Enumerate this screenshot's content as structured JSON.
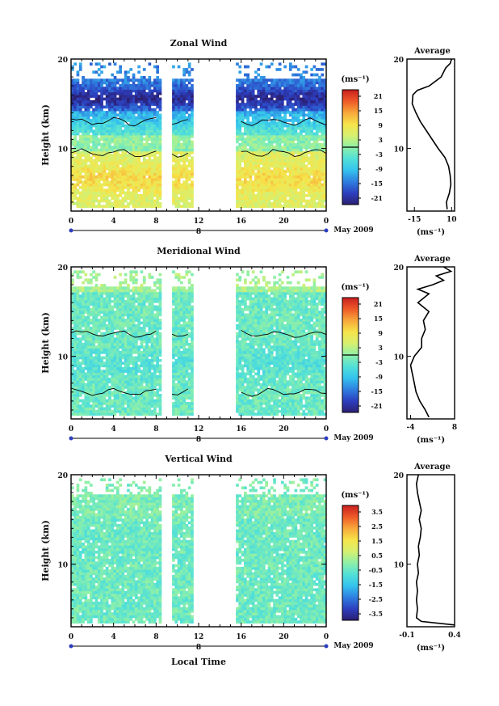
{
  "chart_data": {
    "type": "heatmap",
    "shared": {
      "xlabel": "Local Time",
      "date_label": "May 2009",
      "day_marker": "8",
      "xticks": [
        "0",
        "4",
        "8",
        "12",
        "16",
        "20",
        "0"
      ],
      "xlim": [
        0,
        24
      ],
      "data_gaps_hours": [
        [
          8.4,
          9.4
        ],
        [
          11.4,
          15.6
        ]
      ],
      "colormap": [
        "#2b1f73",
        "#2c3fbf",
        "#2f7fe0",
        "#35c3ee",
        "#52e0d8",
        "#8ef0a8",
        "#d6f070",
        "#f6e44a",
        "#f7a83a",
        "#ee5a28",
        "#c91e1e"
      ]
    },
    "panels": [
      {
        "title": "Zonal Wind",
        "ylabel": "Height (km)",
        "ylim": [
          3,
          20
        ],
        "yticks": [
          "10",
          "20"
        ],
        "colorbar_unit": "(ms⁻¹)",
        "colorbar_ticks": [
          "21",
          "15",
          "9",
          "3",
          "-3",
          "-9",
          "-15",
          "-21"
        ],
        "colorbar_range": [
          -24,
          24
        ],
        "contour_level": 0,
        "average": {
          "title": "Average",
          "xlabel": "(ms⁻¹)",
          "xticks": [
            "-15",
            "10"
          ],
          "xlim": [
            -20,
            12
          ],
          "profile": [
            [
              3.2,
              7
            ],
            [
              4,
              6.5
            ],
            [
              5,
              8.5
            ],
            [
              6,
              9.5
            ],
            [
              7,
              9
            ],
            [
              8,
              8
            ],
            [
              9,
              5.5
            ],
            [
              10,
              1
            ],
            [
              11,
              -3
            ],
            [
              12,
              -7
            ],
            [
              13,
              -11
            ],
            [
              14,
              -14
            ],
            [
              15,
              -16.5
            ],
            [
              16,
              -16
            ],
            [
              16.5,
              -13
            ],
            [
              17,
              -5
            ],
            [
              18,
              3
            ],
            [
              19,
              6
            ],
            [
              19.5,
              9
            ],
            [
              20,
              10
            ]
          ]
        }
      },
      {
        "title": "Meridional Wind",
        "ylabel": "Height (km)",
        "ylim": [
          3,
          20
        ],
        "yticks": [
          "10",
          "20"
        ],
        "colorbar_unit": "(ms⁻¹)",
        "colorbar_ticks": [
          "21",
          "15",
          "9",
          "3",
          "-3",
          "-9",
          "-15",
          "-21"
        ],
        "colorbar_range": [
          -24,
          24
        ],
        "contour_level": 0,
        "average": {
          "title": "Average",
          "xlabel": "(ms⁻¹)",
          "xticks": [
            "-4",
            "8"
          ],
          "xlim": [
            -5,
            8
          ],
          "profile": [
            [
              3.2,
              1
            ],
            [
              4,
              0
            ],
            [
              5,
              -1.5
            ],
            [
              6,
              -2.5
            ],
            [
              7,
              -3
            ],
            [
              8,
              -3.5
            ],
            [
              9,
              -4
            ],
            [
              10,
              -3
            ],
            [
              11,
              -1
            ],
            [
              12,
              -1
            ],
            [
              13,
              0
            ],
            [
              14,
              -0.5
            ],
            [
              15,
              1
            ],
            [
              16,
              -2
            ],
            [
              17,
              1
            ],
            [
              17.5,
              -2
            ],
            [
              18,
              2
            ],
            [
              18.5,
              5
            ],
            [
              19,
              3
            ],
            [
              19.5,
              7
            ],
            [
              20,
              5
            ]
          ]
        }
      },
      {
        "title": "Vertical Wind",
        "ylabel": "Height (km)",
        "ylim": [
          3,
          20
        ],
        "yticks": [
          "10",
          "20"
        ],
        "colorbar_unit": "(ms⁻¹)",
        "colorbar_ticks": [
          "3.5",
          "2.5",
          "1.5",
          "0.5",
          "-0.5",
          "-1.5",
          "-2.5",
          "-3.5"
        ],
        "colorbar_range": [
          -4,
          4
        ],
        "average": {
          "title": "Average",
          "xlabel": "(ms⁻¹)",
          "xticks": [
            "-0.1",
            "0.4"
          ],
          "xlim": [
            -0.1,
            0.4
          ],
          "profile": [
            [
              3.2,
              0.4
            ],
            [
              3.6,
              0.05
            ],
            [
              4,
              0.0
            ],
            [
              5,
              0.01
            ],
            [
              6,
              0.0
            ],
            [
              7,
              0.01
            ],
            [
              8,
              0.0
            ],
            [
              9,
              0.02
            ],
            [
              10,
              0.01
            ],
            [
              11,
              0.03
            ],
            [
              12,
              0.02
            ],
            [
              13,
              0.04
            ],
            [
              14,
              0.05
            ],
            [
              15,
              0.03
            ],
            [
              16,
              0.05
            ],
            [
              17,
              0.03
            ],
            [
              18,
              0.01
            ],
            [
              19,
              0.0
            ],
            [
              20,
              0.02
            ]
          ]
        }
      }
    ]
  }
}
